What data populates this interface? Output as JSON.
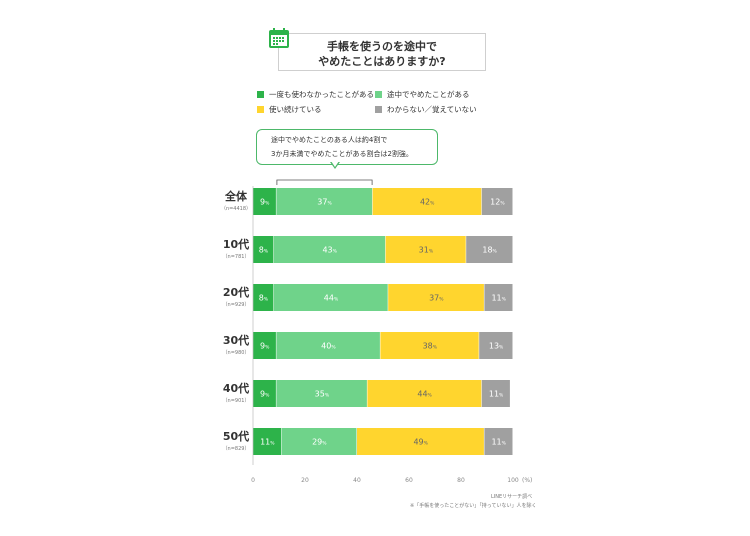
{
  "title": {
    "line1": "手帳を使うのを途中で",
    "line2": "やめたことはありますか?"
  },
  "icon": "calendar-icon",
  "legend": [
    {
      "label": "一度も使わなかったことがある",
      "color": "#2db34a"
    },
    {
      "label": "途中でやめたことがある",
      "color": "#6fd38a"
    },
    {
      "label": "使い続けている",
      "color": "#ffd52e"
    },
    {
      "label": "わからない／覚えていない",
      "color": "#a0a0a0"
    }
  ],
  "callout": {
    "line1": "途中でやめたことのある人は約4割で",
    "line2": "3か月未満でやめたことがある割合は2割強。"
  },
  "chart_data": {
    "type": "bar",
    "orientation": "horizontal",
    "stacked": true,
    "categories": [
      {
        "label": "全体",
        "sub": "（n=4418）"
      },
      {
        "label": "10代",
        "sub": "（n=781）"
      },
      {
        "label": "20代",
        "sub": "（n=929）"
      },
      {
        "label": "30代",
        "sub": "（n=980）"
      },
      {
        "label": "40代",
        "sub": "（n=901）"
      },
      {
        "label": "50代",
        "sub": "（n=829）"
      }
    ],
    "series": [
      {
        "name": "一度も使わなかったことがある",
        "color": "#2db34a",
        "values": [
          9,
          8,
          8,
          9,
          9,
          11
        ]
      },
      {
        "name": "途中でやめたことがある",
        "color": "#6fd38a",
        "values": [
          37,
          43,
          44,
          40,
          35,
          29
        ]
      },
      {
        "name": "使い続けている",
        "color": "#ffd52e",
        "values": [
          42,
          31,
          37,
          38,
          44,
          49
        ]
      },
      {
        "name": "わからない／覚えていない",
        "color": "#a0a0a0",
        "values": [
          12,
          18,
          11,
          13,
          11,
          11
        ]
      }
    ],
    "value_suffix": "%",
    "xlim": [
      0,
      100
    ],
    "xticks": [
      0,
      20,
      40,
      60,
      80,
      100
    ],
    "x_unit": "(%)",
    "grid": false,
    "legend_position": "top"
  },
  "footer": {
    "source": "LINEリサーチ調べ",
    "note": "※「手帳を使ったことがない」「持っていない」人を除く"
  }
}
